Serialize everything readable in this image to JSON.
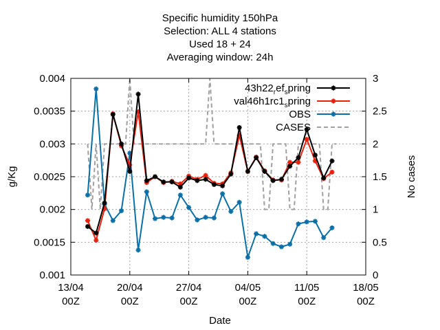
{
  "chart_data": {
    "type": "line",
    "title_lines": [
      "Specific humidity 150hPa",
      "Selection: ALL      4 stations",
      "Used  18  + 24",
      "Averaging window: 24h"
    ],
    "xlabel": "Date",
    "ylabel": "g/Kg",
    "y2label": "No cases",
    "xlim": [
      "2022-04-13 00:00",
      "2022-05-18 00:00"
    ],
    "ylim": [
      0.001,
      0.004
    ],
    "y2lim": [
      0,
      3
    ],
    "x_ticks": [
      {
        "x": "2022-04-13 00:00",
        "line1": "13/04",
        "line2": "00Z"
      },
      {
        "x": "2022-04-20 00:00",
        "line1": "20/04",
        "line2": "00Z"
      },
      {
        "x": "2022-04-27 00:00",
        "line1": "27/04",
        "line2": "00Z"
      },
      {
        "x": "2022-05-04 00:00",
        "line1": "04/05",
        "line2": "00Z"
      },
      {
        "x": "2022-05-11 00:00",
        "line1": "11/05",
        "line2": "00Z"
      },
      {
        "x": "2022-05-18 00:00",
        "line1": "18/05",
        "line2": "00Z"
      }
    ],
    "y_ticks": [
      {
        "v": 0.001,
        "label": "0.001"
      },
      {
        "v": 0.0015,
        "label": "0.0015"
      },
      {
        "v": 0.002,
        "label": "0.002"
      },
      {
        "v": 0.0025,
        "label": "0.0025"
      },
      {
        "v": 0.003,
        "label": "0.003"
      },
      {
        "v": 0.0035,
        "label": "0.0035"
      },
      {
        "v": 0.004,
        "label": "0.004"
      }
    ],
    "y2_ticks": [
      {
        "v": 0,
        "label": "0"
      },
      {
        "v": 0.5,
        "label": "0.5"
      },
      {
        "v": 1,
        "label": "1"
      },
      {
        "v": 1.5,
        "label": "1.5"
      },
      {
        "v": 2,
        "label": "2"
      },
      {
        "v": 2.5,
        "label": "2.5"
      },
      {
        "v": 3,
        "label": "3"
      }
    ],
    "grid": true,
    "legend_position": "top-right",
    "x": [
      "2022-04-15 00:00",
      "2022-04-15 12:00",
      "2022-04-16 00:00",
      "2022-04-16 12:00",
      "2022-04-17 00:00",
      "2022-04-17 12:00",
      "2022-04-18 00:00",
      "2022-04-18 12:00",
      "2022-04-19 00:00",
      "2022-04-19 12:00",
      "2022-04-20 00:00",
      "2022-04-20 12:00",
      "2022-04-21 00:00",
      "2022-04-21 12:00",
      "2022-04-22 00:00",
      "2022-04-22 12:00",
      "2022-04-23 00:00",
      "2022-04-23 12:00",
      "2022-04-24 00:00",
      "2022-04-24 12:00",
      "2022-04-25 00:00",
      "2022-04-25 12:00",
      "2022-04-26 00:00",
      "2022-04-26 12:00",
      "2022-04-27 00:00",
      "2022-04-27 12:00",
      "2022-04-28 00:00",
      "2022-04-28 12:00",
      "2022-04-29 00:00",
      "2022-04-29 12:00",
      "2022-04-30 00:00",
      "2022-04-30 12:00",
      "2022-05-01 00:00",
      "2022-05-01 12:00",
      "2022-05-02 00:00",
      "2022-05-02 12:00",
      "2022-05-03 00:00",
      "2022-05-03 12:00",
      "2022-05-04 00:00",
      "2022-05-04 12:00",
      "2022-05-05 00:00",
      "2022-05-05 12:00",
      "2022-05-06 00:00",
      "2022-05-06 12:00",
      "2022-05-07 00:00",
      "2022-05-07 12:00",
      "2022-05-08 00:00",
      "2022-05-08 12:00",
      "2022-05-09 00:00",
      "2022-05-09 12:00",
      "2022-05-10 00:00",
      "2022-05-10 12:00",
      "2022-05-11 00:00",
      "2022-05-11 12:00",
      "2022-05-12 00:00",
      "2022-05-12 12:00",
      "2022-05-13 00:00",
      "2022-05-13 12:00",
      "2022-05-14 00:00",
      "2022-05-14 12:00"
    ],
    "series": [
      {
        "name": "43h22",
        "legend_sub": "r",
        "legend_mid": "ef",
        "legend_sub2": "s",
        "legend_tail": "pring",
        "color": "#000000",
        "axis": "y",
        "values": [
          0.00174,
          null,
          0.00164,
          null,
          0.0021,
          null,
          0.00345,
          null,
          0.003,
          null,
          0.00258,
          null,
          0.00376,
          null,
          0.00244,
          null,
          0.0025,
          null,
          0.00242,
          null,
          0.00242,
          null,
          0.00234,
          null,
          0.00248,
          null,
          0.00244,
          null,
          0.00246,
          null,
          0.00238,
          null,
          0.00236,
          null,
          0.00254,
          null,
          0.00325,
          null,
          0.00258,
          null,
          0.00279,
          null,
          0.00258,
          null,
          0.00244,
          null,
          0.00246,
          null,
          0.00266,
          null,
          0.00279,
          null,
          0.00322,
          null,
          0.00283,
          null,
          0.00248,
          null,
          0.00274,
          null
        ]
      },
      {
        "name": "val46h1rc1",
        "legend_sub": "s",
        "legend_tail": "pring",
        "color": "#e8200c",
        "axis": "y",
        "values": [
          0.00183,
          null,
          0.00153,
          null,
          0.00201,
          null,
          0.00346,
          null,
          0.00297,
          null,
          0.00268,
          null,
          0.00349,
          null,
          0.00241,
          null,
          0.0025,
          null,
          0.00241,
          null,
          0.00243,
          null,
          0.00239,
          null,
          0.00251,
          null,
          0.00246,
          null,
          0.00252,
          null,
          0.0024,
          null,
          0.00239,
          null,
          0.00256,
          null,
          0.00313,
          null,
          0.00258,
          null,
          0.0028,
          null,
          0.00259,
          null,
          0.00245,
          null,
          0.00245,
          null,
          0.00272,
          null,
          0.00272,
          null,
          0.00307,
          null,
          0.00274,
          null,
          0.00247,
          null,
          0.00257,
          null
        ]
      },
      {
        "name": "OBS",
        "color": "#0a6fa6",
        "axis": "y",
        "values": [
          0.00222,
          null,
          0.00384,
          null,
          0.00208,
          null,
          0.00183,
          null,
          0.00198,
          null,
          0.00286,
          null,
          0.00138,
          null,
          0.00227,
          null,
          0.00186,
          null,
          0.00188,
          null,
          0.00187,
          null,
          0.00222,
          null,
          0.00203,
          null,
          0.00184,
          null,
          0.00188,
          null,
          0.00187,
          null,
          0.00224,
          null,
          0.00197,
          null,
          0.00211,
          null,
          0.00127,
          null,
          0.00163,
          null,
          0.00159,
          null,
          0.00148,
          null,
          0.00143,
          null,
          0.00147,
          null,
          0.00178,
          null,
          0.00181,
          null,
          0.00182,
          null,
          0.00157,
          null,
          0.00172,
          null
        ]
      },
      {
        "name": "CASES",
        "color": "#a0a0a0",
        "axis": "y2",
        "dashed": true,
        "values": [
          2,
          1,
          2,
          1,
          2,
          2,
          2,
          2,
          2,
          2,
          3,
          2,
          2,
          2,
          2,
          2,
          2,
          2,
          2,
          2,
          2,
          2,
          2,
          2,
          2,
          2,
          2,
          2,
          2,
          3,
          2,
          2,
          2,
          2,
          2,
          2,
          2,
          2,
          2,
          2,
          2,
          2,
          1,
          1,
          2,
          2,
          2,
          2,
          1,
          1,
          2,
          2,
          2,
          2,
          2,
          2,
          1,
          1,
          2,
          2
        ]
      }
    ]
  }
}
